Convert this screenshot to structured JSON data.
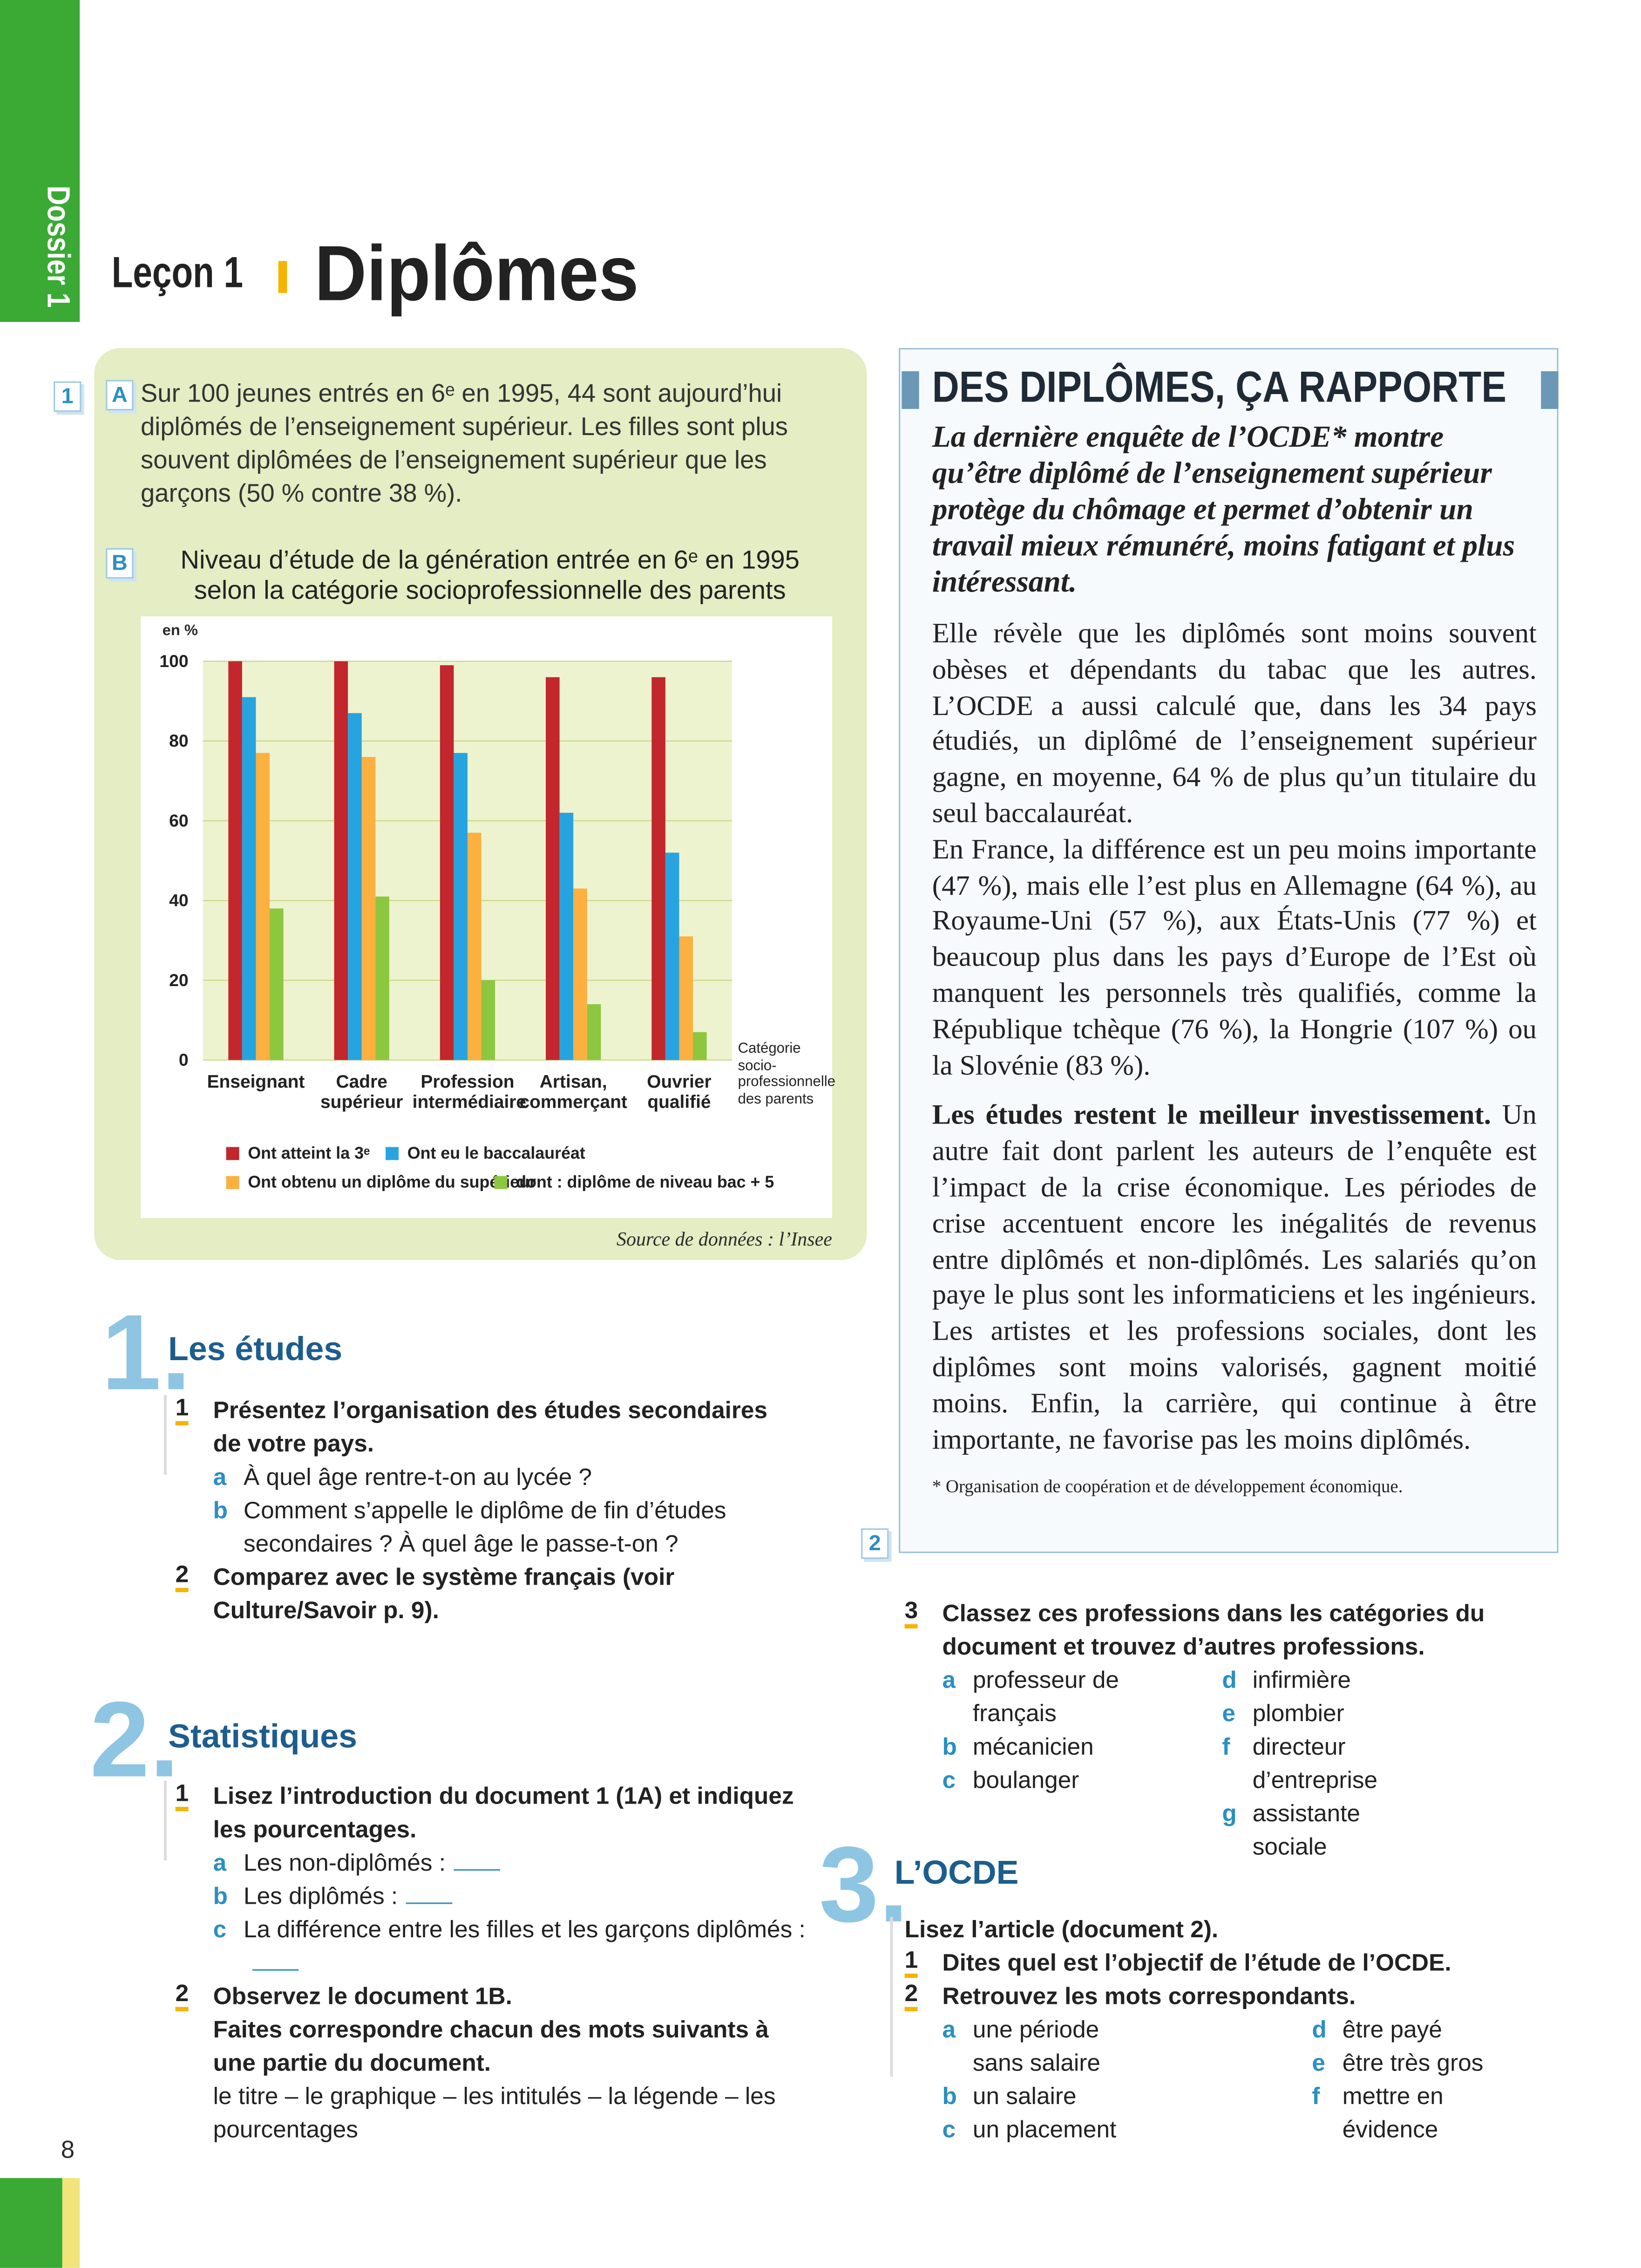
{
  "sidebar": {
    "label": "Dossier 1"
  },
  "header": {
    "lesson": "Leçon 1",
    "title": "Diplômes"
  },
  "doc1": {
    "number": "1",
    "part_a": {
      "letter": "A",
      "text": "Sur 100 jeunes entrés en 6ᵉ en 1995, 44 sont aujourd’hui diplômés de l’enseignement supérieur. Les filles sont plus souvent diplômées de l’enseignement supérieur que les garçons (50 % contre 38 %)."
    },
    "part_b": {
      "letter": "B"
    }
  },
  "chart_data": {
    "type": "bar",
    "title": "Niveau d’étude de la génération entrée en 6ᵉ en 1995 selon la catégorie socioprofessionnelle des parents",
    "y_label": "en %",
    "x_label": "Catégorie socio-professionnelle des parents",
    "categories": [
      "Enseignant",
      "Cadre supérieur",
      "Profession intermédiaire",
      "Artisan, commerçant",
      "Ouvrier qualifié"
    ],
    "series": [
      {
        "name": "Ont atteint la 3ᵉ",
        "color": "#c1272d",
        "values": [
          100,
          100,
          99,
          96,
          96
        ]
      },
      {
        "name": "Ont eu le baccalauréat",
        "color": "#27a4df",
        "values": [
          91,
          87,
          77,
          62,
          52
        ]
      },
      {
        "name": "Ont obtenu un diplôme du supérieur",
        "color": "#fbb040",
        "values": [
          77,
          76,
          57,
          43,
          31
        ]
      },
      {
        "name": "dont : diplôme de niveau bac + 5",
        "color": "#8dc63f",
        "values": [
          38,
          41,
          20,
          14,
          7
        ]
      }
    ],
    "ylim": [
      0,
      100
    ],
    "yticks": [
      0,
      20,
      40,
      60,
      80,
      100
    ],
    "grid": true,
    "source": "Source de données : l’Insee"
  },
  "doc2": {
    "number": "2",
    "title": "DES DIPLÔMES, ÇA RAPPORTE",
    "lead": "La dernière enquête de l’OCDE* montre qu’être diplômé de l’enseignement supérieur protège du chômage et permet d’obtenir un travail mieux rémunéré, moins fatigant et plus intéressant.",
    "paragraphs": [
      "Elle révèle que les diplômés sont moins souvent obèses et dépendants du tabac que les autres. L’OCDE a aussi calculé que, dans les 34 pays étudiés, un diplômé de l’enseignement supérieur gagne, en moyenne, 64 % de plus qu’un titulaire du seul baccalauréat.",
      "En France, la différence est un peu moins importante (47 %), mais elle l’est plus en Allemagne (64 %), au Royaume-Uni (57 %), aux États-Unis (77 %) et beaucoup plus dans les pays d’Europe de l’Est où manquent les personnels très qualifiés, comme la République tchèque (76 %), la Hongrie (107 %) ou la Slovénie (83 %)."
    ],
    "subheading": "Les études restent le meilleur investissement.",
    "last_paragraph": "Un autre fait dont parlent les auteurs de l’enquête est l’impact de la crise économique. Les périodes de crise accentuent encore les inégalités de revenus entre diplômés et non-diplômés. Les salariés qu’on paye le plus sont les informaticiens et les ingénieurs. Les artistes et les professions sociales, dont les diplômes sont moins valorisés, gagnent moitié moins. Enfin, la carrière, qui continue à être importante, ne favorise pas les moins diplômés.",
    "footnote": "* Organisation de coopération et de développement économique."
  },
  "section1": {
    "number": "1.",
    "title": "Les études",
    "items": [
      {
        "number": "1",
        "text": "Présentez l’organisation des études secondaires de votre pays.",
        "subitems": [
          {
            "letter": "a",
            "text": "À quel âge rentre-t-on au lycée ?"
          },
          {
            "letter": "b",
            "text": "Comment s’appelle le diplôme de fin d’études secondaires ? À quel âge le passe-t-on ?"
          }
        ]
      },
      {
        "number": "2",
        "text": "Comparez avec le système français (voir Culture/Savoir p. 9)."
      }
    ]
  },
  "section2": {
    "number": "2.",
    "title": "Statistiques",
    "items": [
      {
        "number": "1",
        "text": "Lisez l’introduction du document 1 (1A) et indiquez les pourcentages.",
        "subitems": [
          {
            "letter": "a",
            "text": "Les non-diplômés :"
          },
          {
            "letter": "b",
            "text": "Les diplômés :"
          },
          {
            "letter": "c",
            "text": "La différence entre les filles et les garçons diplômés :"
          }
        ]
      },
      {
        "number": "2",
        "text": "Observez le document 1B.",
        "instruction": "Faites correspondre chacun des mots suivants à une partie du document.",
        "note": "le titre – le graphique – les intitulés – la légende – les pourcentages"
      }
    ]
  },
  "exercise3": {
    "number": "3",
    "text": "Classez ces professions dans les catégories du document et trouvez d’autres professions.",
    "options": [
      {
        "letter": "a",
        "text": "professeur de français"
      },
      {
        "letter": "b",
        "text": "mécanicien"
      },
      {
        "letter": "c",
        "text": "boulanger"
      },
      {
        "letter": "d",
        "text": "infirmière"
      },
      {
        "letter": "e",
        "text": "plombier"
      },
      {
        "letter": "f",
        "text": "directeur d’entreprise"
      },
      {
        "letter": "g",
        "text": "assistante sociale"
      }
    ]
  },
  "section3": {
    "number": "3.",
    "title": "L’OCDE",
    "intro": "Lisez l’article (document 2).",
    "items": [
      {
        "number": "1",
        "text": "Dites quel est l’objectif de l’étude de l’OCDE."
      },
      {
        "number": "2",
        "text": "Retrouvez les mots correspondants.",
        "options": [
          {
            "letter": "a",
            "text": "une période sans salaire"
          },
          {
            "letter": "b",
            "text": "un salaire"
          },
          {
            "letter": "c",
            "text": "un placement"
          },
          {
            "letter": "d",
            "text": "être payé"
          },
          {
            "letter": "e",
            "text": "être très gros"
          },
          {
            "letter": "f",
            "text": "mettre en évidence"
          }
        ]
      }
    ]
  },
  "page_number": "8"
}
